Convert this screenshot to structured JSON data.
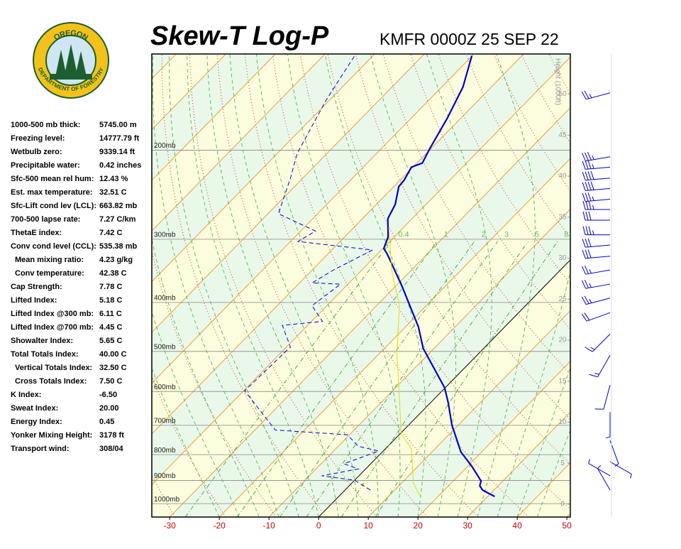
{
  "logo": {
    "top": "OREGON",
    "bottom": "DEPARTMENT OF FORESTRY"
  },
  "header": {
    "title": "Skew-T Log-P",
    "station": "KMFR 0000Z 25 SEP 22"
  },
  "indices": [
    {
      "label": "1000-500 mb thick:",
      "value": "5745.00 m"
    },
    {
      "label": "Freezing level:",
      "value": "14777.79 ft"
    },
    {
      "label": "Wetbulb zero:",
      "value": "9339.14 ft"
    },
    {
      "label": "Precipitable water:",
      "value": "0.42 inches"
    },
    {
      "label": "Sfc-500 mean rel hum:",
      "value": "12.43 %"
    },
    {
      "label": "Est. max temperature:",
      "value": "32.51 C"
    },
    {
      "label": "Sfc-Lift cond lev (LCL):",
      "value": "663.82 mb"
    },
    {
      "label": "700-500 lapse rate:",
      "value": "7.27 C/km"
    },
    {
      "label": "ThetaE index:",
      "value": "7.42 C"
    },
    {
      "label": "Conv cond level (CCL):",
      "value": "535.38 mb"
    },
    {
      "label": "Mean mixing ratio:",
      "value": "4.23 g/kg",
      "indent": true
    },
    {
      "label": "Conv temperature:",
      "value": "42.38 C",
      "indent": true
    },
    {
      "label": "Cap Strength:",
      "value": "7.78 C"
    },
    {
      "label": "Lifted Index:",
      "value": "5.18 C"
    },
    {
      "label": "Lifted Index @300 mb:",
      "value": "6.11 C"
    },
    {
      "label": "Lifted Index @700 mb:",
      "value": "4.45 C"
    },
    {
      "label": "Showalter Index:",
      "value": "5.65 C"
    },
    {
      "label": "Total Totals Index:",
      "value": "40.00 C"
    },
    {
      "label": "Vertical Totals Index:",
      "value": "32.50 C",
      "indent": true
    },
    {
      "label": "Cross Totals Index:",
      "value": "7.50 C",
      "indent": true
    },
    {
      "label": "K Index:",
      "value": "-6.50"
    },
    {
      "label": "Sweat Index:",
      "value": "20.00"
    },
    {
      "label": "Energy Index:",
      "value": "0.45"
    },
    {
      "label": "Yonker Mixing Height:",
      "value": "3178 ft"
    },
    {
      "label": "Transport wind:",
      "value": "308/04"
    }
  ],
  "chart_data": {
    "type": "skewt",
    "xlim": [
      -33.6,
      50.7
    ],
    "xticks": [
      -30,
      -20,
      -10,
      0,
      10,
      20,
      30,
      40,
      50
    ],
    "ylim": [
      1063,
      129
    ],
    "yscale": "log",
    "yticks": [
      {
        "value": 200,
        "label": "200mb"
      },
      {
        "value": 300,
        "label": "300mb"
      },
      {
        "value": 400,
        "label": "400mb"
      },
      {
        "value": 500,
        "label": "500mb"
      },
      {
        "value": 600,
        "label": "600mb"
      },
      {
        "value": 700,
        "label": "700mb"
      },
      {
        "value": 800,
        "label": "800mb"
      },
      {
        "value": 900,
        "label": "900mb"
      },
      {
        "value": 1000,
        "label": "1000mb"
      }
    ],
    "y2label": "Height (1000ft)",
    "y2lim": [
      -1.56,
      54.9
    ],
    "y2ticks": [
      0,
      5,
      10,
      15,
      20,
      25,
      30,
      35,
      40,
      45,
      50
    ],
    "mixing_ratios": [
      0.4,
      1,
      2,
      3,
      5,
      8
    ],
    "series": [
      {
        "color": "#0000cc",
        "style": "solid",
        "pressure": [
          968,
          940,
          922,
          902,
          843,
          790,
          699,
          632,
          590,
          493,
          447,
          371,
          320,
          313,
          297,
          273,
          256,
          236,
          229,
          216,
          212,
          199,
          173,
          150,
          130
        ],
        "temperature": [
          31.4,
          27.7,
          26.3,
          25.6,
          20.8,
          15.8,
          8.7,
          3.6,
          -0.1,
          -12.2,
          -17.4,
          -28.8,
          -38.2,
          -39.8,
          -41.2,
          -44.9,
          -46.2,
          -49.0,
          -49.2,
          -50.3,
          -48.9,
          -50.2,
          -52.7,
          -55.7,
          -60.1
        ]
      },
      {
        "color": "#0000cc",
        "style": "dashed",
        "pressure": [
          940,
          899,
          881,
          854,
          834,
          787,
          770,
          731,
          715,
          598,
          490,
          444,
          436,
          406,
          368,
          366,
          345,
          315,
          303,
          289,
          267,
          227,
          203,
          159,
          130
        ],
        "temperature": [
          5.1,
          0,
          -7.5,
          -1.5,
          -5.4,
          -0.9,
          -6.0,
          -10.4,
          -25.9,
          -39.8,
          -39.2,
          -45.1,
          -37.8,
          -43.0,
          -41.5,
          -47.5,
          -45.7,
          -41.8,
          -58.5,
          -57.0,
          -67.9,
          -72.5,
          -76.0,
          -80.7,
          -83.7
        ]
      },
      {
        "color": "#e0e000",
        "style": "thin",
        "pressure": [
          965,
          911,
          780,
          726,
          618,
          509,
          406,
          345,
          284
        ],
        "temperature": [
          16.2,
          12.4,
          5.3,
          0.1,
          -7.2,
          -16.1,
          -25.4,
          -34,
          -43.0
        ]
      }
    ],
    "winds": {
      "pressure": [
        154,
        206,
        216,
        227,
        238,
        250,
        262,
        275,
        294,
        308,
        324,
        345,
        368,
        392,
        419,
        462,
        509,
        583,
        659,
        750,
        826,
        881,
        940
      ],
      "direction": [
        255,
        260,
        265,
        265,
        265,
        265,
        270,
        270,
        270,
        265,
        265,
        260,
        260,
        255,
        250,
        225,
        210,
        195,
        180,
        160,
        120,
        300,
        330
      ],
      "speed": [
        25,
        35,
        35,
        40,
        40,
        35,
        35,
        30,
        35,
        30,
        30,
        25,
        25,
        25,
        20,
        15,
        15,
        10,
        5,
        5,
        5,
        5,
        5
      ]
    }
  }
}
